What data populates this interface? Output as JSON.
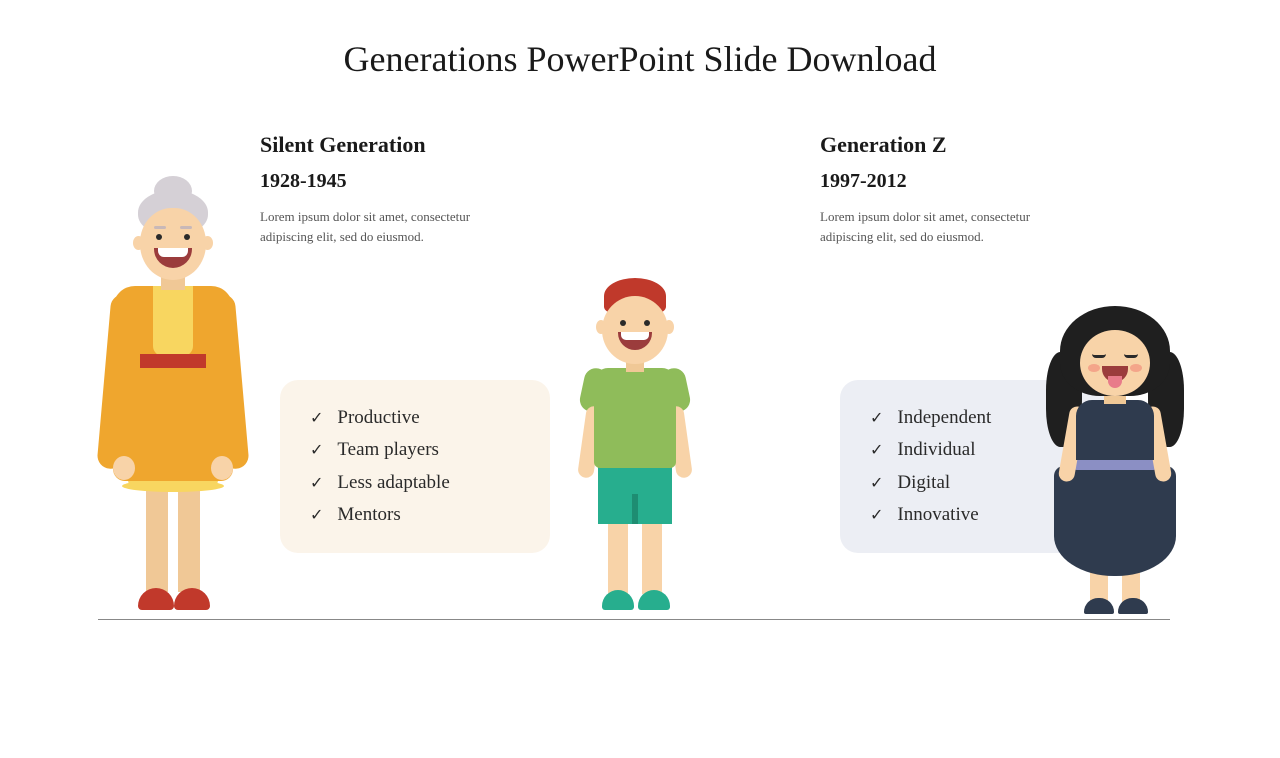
{
  "title": "Generations PowerPoint Slide Download",
  "sections": [
    {
      "heading": "Silent Generation",
      "years": "1928-1945",
      "desc": "Lorem ipsum dolor sit amet, consectetur adipiscing elit, sed do eiusmod.",
      "traits": [
        "Productive",
        "Team players",
        "Less adaptable",
        "Mentors"
      ],
      "box_bg": "#fbf4ea"
    },
    {
      "heading": "Generation Z",
      "years": "1997-2012",
      "desc": "Lorem ipsum dolor sit amet, consectetur adipiscing elit, sed do eiusmod.",
      "traits": [
        "Independent",
        "Individual",
        "Digital",
        "Innovative"
      ],
      "box_bg": "#eceef4"
    }
  ],
  "styling": {
    "background": "#ffffff",
    "title_color": "#1a1a1a",
    "title_fontsize": 36,
    "heading_fontsize": 22,
    "years_fontsize": 20,
    "desc_fontsize": 13,
    "desc_color": "#555555",
    "trait_fontsize": 19,
    "box_radius": 18,
    "ground_line_color": "#888888",
    "font_family": "Georgia, serif"
  },
  "characters": {
    "grandma": {
      "hair": "#d5d0d6",
      "skin": "#f8d3a8",
      "cardigan": "#efa62e",
      "dress": "#f8d660",
      "belt": "#c1392b",
      "shoes": "#c1392b"
    },
    "boy": {
      "hair": "#c0392b",
      "skin": "#f8d3a8",
      "shirt": "#8fbc5a",
      "shorts": "#27ae8e",
      "shoes": "#27ae8e"
    },
    "girl": {
      "hair": "#1f1f1f",
      "skin": "#f8d3a8",
      "dress": "#2f3b4e",
      "frill": "#8b8fc4",
      "shoes": "#2f3b4e"
    }
  }
}
